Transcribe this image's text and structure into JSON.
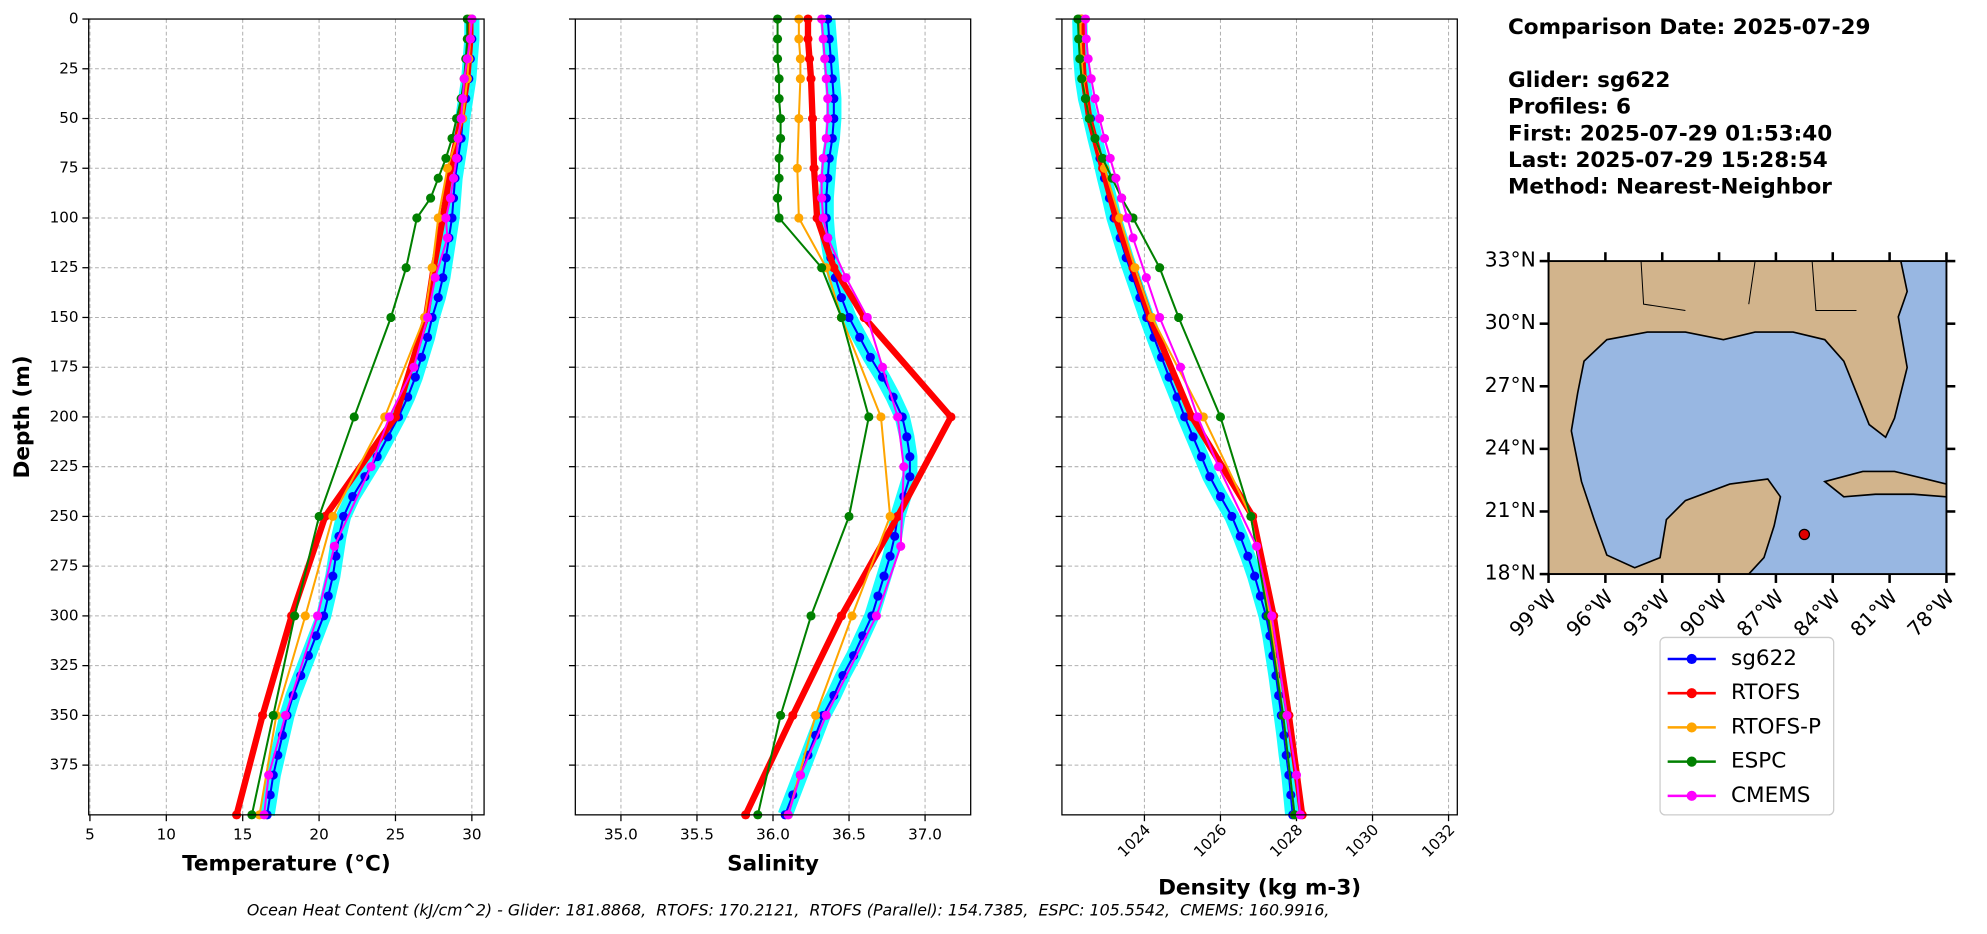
{
  "info": {
    "comparison_date": "Comparison Date: 2025-07-29",
    "lines": [
      "Glider: sg622",
      "Profiles: 6",
      "First: 2025-07-29 01:53:40",
      "Last: 2025-07-29 15:28:54",
      "Method: Nearest-Neighbor"
    ]
  },
  "footer": "Ocean Heat Content (kJ/cm^2) - Glider: 181.8868,  RTOFS: 170.2121,  RTOFS (Parallel): 154.7385,  ESPC: 105.5542,  CMEMS: 160.9916,",
  "map": {
    "xlim": [
      -99,
      -78
    ],
    "ylim": [
      18,
      33
    ],
    "xticks": [
      {
        "value": -99,
        "label": "99°W"
      },
      {
        "value": -96,
        "label": "96°W"
      },
      {
        "value": -93,
        "label": "93°W"
      },
      {
        "value": -90,
        "label": "90°W"
      },
      {
        "value": -87,
        "label": "87°W"
      },
      {
        "value": -84,
        "label": "84°W"
      },
      {
        "value": -81,
        "label": "81°W"
      },
      {
        "value": -78,
        "label": "78°W"
      }
    ],
    "yticks": [
      {
        "value": 18,
        "label": "18°N"
      },
      {
        "value": 21,
        "label": "21°N"
      },
      {
        "value": 24,
        "label": "24°N"
      },
      {
        "value": 27,
        "label": "27°N"
      },
      {
        "value": 30,
        "label": "30°N"
      },
      {
        "value": 33,
        "label": "33°N"
      }
    ],
    "point": {
      "lon": -85.5,
      "lat": 19.9,
      "color": "#e00000"
    }
  },
  "chart_data": [
    {
      "type": "line",
      "xlabel": "Temperature (°C)",
      "ylabel": "Depth (m)",
      "xlim": [
        4.92,
        30.8
      ],
      "xticks": [
        5,
        10,
        15,
        20,
        25,
        30
      ],
      "ylim": [
        400,
        0
      ],
      "yticks": [
        0,
        25,
        50,
        75,
        100,
        125,
        150,
        175,
        200,
        225,
        250,
        275,
        300,
        325,
        350,
        375
      ],
      "grid": true,
      "series": [
        {
          "name": "sg622",
          "color": "#0000ff",
          "linewidth": 1.6,
          "depth": [
            0,
            10,
            20,
            30,
            40,
            50,
            60,
            70,
            80,
            90,
            100,
            110,
            120,
            130,
            140,
            150,
            160,
            170,
            180,
            190,
            200,
            210,
            220,
            230,
            240,
            250,
            260,
            270,
            280,
            290,
            300,
            310,
            320,
            330,
            340,
            350,
            360,
            370,
            380,
            390,
            400
          ],
          "values": [
            30.0,
            30.0,
            29.9,
            29.8,
            29.6,
            29.4,
            29.3,
            29.1,
            28.9,
            28.8,
            28.7,
            28.5,
            28.3,
            28.1,
            27.8,
            27.4,
            27.1,
            26.7,
            26.3,
            25.8,
            25.2,
            24.5,
            23.8,
            23.0,
            22.2,
            21.6,
            21.3,
            21.1,
            20.9,
            20.6,
            20.3,
            19.8,
            19.3,
            18.8,
            18.3,
            17.9,
            17.6,
            17.3,
            17.0,
            16.8,
            16.6
          ]
        },
        {
          "name": "RTOFS",
          "color": "#ff0000",
          "linewidth": 5,
          "depth": [
            0,
            10,
            20,
            30,
            50,
            75,
            100,
            125,
            150,
            200,
            250,
            300,
            350,
            400
          ],
          "values": [
            29.9,
            29.9,
            29.8,
            29.7,
            29.3,
            28.6,
            28.1,
            27.5,
            27.0,
            25.0,
            20.4,
            18.2,
            16.3,
            14.6
          ]
        },
        {
          "name": "RTOFS-P",
          "color": "#ffa500",
          "linewidth": 1.6,
          "depth": [
            0,
            10,
            20,
            30,
            50,
            75,
            100,
            125,
            150,
            200,
            250,
            300,
            350,
            400
          ],
          "values": [
            29.9,
            29.9,
            29.8,
            29.7,
            29.4,
            28.4,
            27.8,
            27.4,
            26.9,
            24.3,
            20.9,
            19.1,
            17.2,
            16.1
          ]
        },
        {
          "name": "ESPC",
          "color": "#008000",
          "linewidth": 1.6,
          "depth": [
            0,
            10,
            20,
            30,
            40,
            50,
            60,
            70,
            80,
            90,
            100,
            125,
            150,
            200,
            250,
            300,
            350,
            400
          ],
          "values": [
            29.7,
            29.7,
            29.6,
            29.5,
            29.3,
            29.0,
            28.7,
            28.3,
            27.8,
            27.3,
            26.4,
            25.7,
            24.7,
            22.3,
            20.0,
            18.4,
            17.0,
            15.6
          ]
        },
        {
          "name": "CMEMS",
          "color": "#ff00ff",
          "linewidth": 1.6,
          "depth": [
            0,
            10,
            20,
            30,
            40,
            50,
            60,
            70,
            80,
            90,
            100,
            110,
            130,
            150,
            175,
            200,
            225,
            265,
            300,
            350,
            380,
            400
          ],
          "values": [
            30.0,
            29.9,
            29.7,
            29.5,
            29.4,
            29.3,
            29.1,
            29.0,
            28.8,
            28.6,
            28.3,
            28.4,
            27.6,
            27.1,
            26.2,
            24.6,
            23.4,
            21.0,
            19.9,
            17.8,
            16.7,
            16.4
          ]
        }
      ]
    },
    {
      "type": "line",
      "xlabel": "Salinity",
      "xlim": [
        34.7,
        37.3
      ],
      "xticks": [
        {
          "value": 35,
          "label": "35.0"
        },
        35.5,
        {
          "value": 36,
          "label": "36.0"
        },
        36.5,
        {
          "value": 37,
          "label": "37.0"
        }
      ],
      "ylim": [
        400,
        0
      ],
      "yticks": [
        0,
        25,
        50,
        75,
        100,
        125,
        150,
        175,
        200,
        225,
        250,
        275,
        300,
        325,
        350,
        375
      ],
      "grid": true,
      "series": [
        {
          "depth": [
            0,
            10,
            20,
            30,
            40,
            50,
            60,
            70,
            80,
            90,
            100,
            110,
            120,
            130,
            140,
            150,
            160,
            170,
            180,
            190,
            200,
            210,
            220,
            230,
            240,
            250,
            260,
            270,
            280,
            290,
            300,
            310,
            320,
            330,
            340,
            350,
            360,
            370,
            380,
            390,
            400
          ],
          "values": [
            36.36,
            36.37,
            36.38,
            36.39,
            36.4,
            36.4,
            36.39,
            36.37,
            36.36,
            36.35,
            36.35,
            36.36,
            36.38,
            36.41,
            36.45,
            36.5,
            36.57,
            36.64,
            36.72,
            36.79,
            36.85,
            36.88,
            36.9,
            36.9,
            36.86,
            36.82,
            36.8,
            36.77,
            36.73,
            36.69,
            36.65,
            36.59,
            36.53,
            36.46,
            36.4,
            36.33,
            36.28,
            36.23,
            36.18,
            36.13,
            36.08
          ]
        },
        {
          "depth": [
            0,
            10,
            20,
            30,
            50,
            75,
            100,
            125,
            150,
            200,
            250,
            300,
            350,
            400
          ],
          "values": [
            36.23,
            36.23,
            36.24,
            36.25,
            36.26,
            36.27,
            36.29,
            36.4,
            36.6,
            37.17,
            36.82,
            36.45,
            36.13,
            35.82
          ]
        },
        {
          "depth": [
            0,
            10,
            20,
            30,
            50,
            75,
            100,
            125,
            150,
            200,
            250,
            300,
            350,
            400
          ],
          "values": [
            36.17,
            36.17,
            36.18,
            36.18,
            36.17,
            36.16,
            36.17,
            36.35,
            36.45,
            36.71,
            36.77,
            36.52,
            36.28,
            36.1
          ]
        },
        {
          "depth": [
            0,
            10,
            20,
            30,
            40,
            50,
            60,
            70,
            80,
            90,
            100,
            125,
            150,
            200,
            250,
            300,
            350,
            400
          ],
          "values": [
            36.03,
            36.03,
            36.03,
            36.04,
            36.04,
            36.05,
            36.05,
            36.04,
            36.04,
            36.03,
            36.04,
            36.32,
            36.45,
            36.63,
            36.5,
            36.25,
            36.05,
            35.9
          ]
        },
        {
          "depth": [
            0,
            10,
            20,
            30,
            40,
            50,
            60,
            70,
            80,
            90,
            100,
            110,
            130,
            150,
            175,
            200,
            225,
            265,
            300,
            350,
            380,
            400
          ],
          "values": [
            36.32,
            36.33,
            36.34,
            36.35,
            36.36,
            36.36,
            36.35,
            36.33,
            36.32,
            36.32,
            36.33,
            36.36,
            36.48,
            36.62,
            36.72,
            36.82,
            36.86,
            36.84,
            36.68,
            36.35,
            36.18,
            36.1
          ]
        }
      ]
    },
    {
      "type": "line",
      "xlabel": "Density (kg m-3)",
      "xlim": [
        1021.83,
        1032.23
      ],
      "xticks": [
        1024,
        1026,
        1028,
        1030,
        1032
      ],
      "ylim": [
        400,
        0
      ],
      "yticks": [
        0,
        25,
        50,
        75,
        100,
        125,
        150,
        175,
        200,
        225,
        250,
        275,
        300,
        325,
        350,
        375
      ],
      "grid": true,
      "series": [
        {
          "depth": [
            0,
            10,
            20,
            30,
            40,
            50,
            60,
            70,
            80,
            90,
            100,
            110,
            120,
            130,
            140,
            150,
            160,
            170,
            180,
            190,
            200,
            210,
            220,
            230,
            240,
            250,
            260,
            270,
            280,
            290,
            300,
            310,
            320,
            330,
            340,
            350,
            360,
            370,
            380,
            390,
            400
          ],
          "values": [
            1022.3,
            1022.31,
            1022.33,
            1022.37,
            1022.45,
            1022.58,
            1022.7,
            1022.83,
            1022.95,
            1023.08,
            1023.2,
            1023.36,
            1023.52,
            1023.7,
            1023.88,
            1024.06,
            1024.25,
            1024.45,
            1024.65,
            1024.86,
            1025.06,
            1025.28,
            1025.5,
            1025.72,
            1026.0,
            1026.3,
            1026.52,
            1026.72,
            1026.9,
            1027.05,
            1027.2,
            1027.3,
            1027.38,
            1027.46,
            1027.53,
            1027.6,
            1027.67,
            1027.73,
            1027.8,
            1027.85,
            1027.9
          ]
        },
        {
          "depth": [
            0,
            10,
            20,
            30,
            50,
            75,
            100,
            125,
            150,
            200,
            250,
            300,
            350,
            400
          ],
          "values": [
            1022.35,
            1022.35,
            1022.37,
            1022.4,
            1022.55,
            1022.9,
            1023.25,
            1023.7,
            1024.15,
            1025.25,
            1026.85,
            1027.4,
            1027.8,
            1028.15
          ]
        },
        {
          "depth": [
            0,
            10,
            20,
            30,
            50,
            75,
            100,
            125,
            150,
            200,
            250,
            300,
            350,
            400
          ],
          "values": [
            1022.32,
            1022.32,
            1022.35,
            1022.38,
            1022.55,
            1022.95,
            1023.35,
            1023.75,
            1024.2,
            1025.55,
            1026.8,
            1027.3,
            1027.65,
            1027.95
          ]
        },
        {
          "depth": [
            0,
            10,
            20,
            30,
            40,
            50,
            60,
            70,
            80,
            90,
            100,
            125,
            150,
            200,
            250,
            300,
            350,
            400
          ],
          "values": [
            1022.25,
            1022.27,
            1022.3,
            1022.35,
            1022.45,
            1022.55,
            1022.7,
            1022.9,
            1023.15,
            1023.4,
            1023.7,
            1024.4,
            1024.9,
            1026.0,
            1026.8,
            1027.25,
            1027.65,
            1027.95
          ]
        },
        {
          "depth": [
            0,
            10,
            20,
            30,
            40,
            50,
            60,
            70,
            80,
            90,
            100,
            110,
            130,
            150,
            175,
            200,
            225,
            265,
            300,
            350,
            380,
            400
          ],
          "values": [
            1022.45,
            1022.47,
            1022.52,
            1022.6,
            1022.7,
            1022.82,
            1022.95,
            1023.1,
            1023.25,
            1023.4,
            1023.55,
            1023.7,
            1024.05,
            1024.4,
            1024.95,
            1025.4,
            1025.95,
            1026.95,
            1027.35,
            1027.75,
            1028.0,
            1028.1
          ]
        }
      ]
    }
  ]
}
